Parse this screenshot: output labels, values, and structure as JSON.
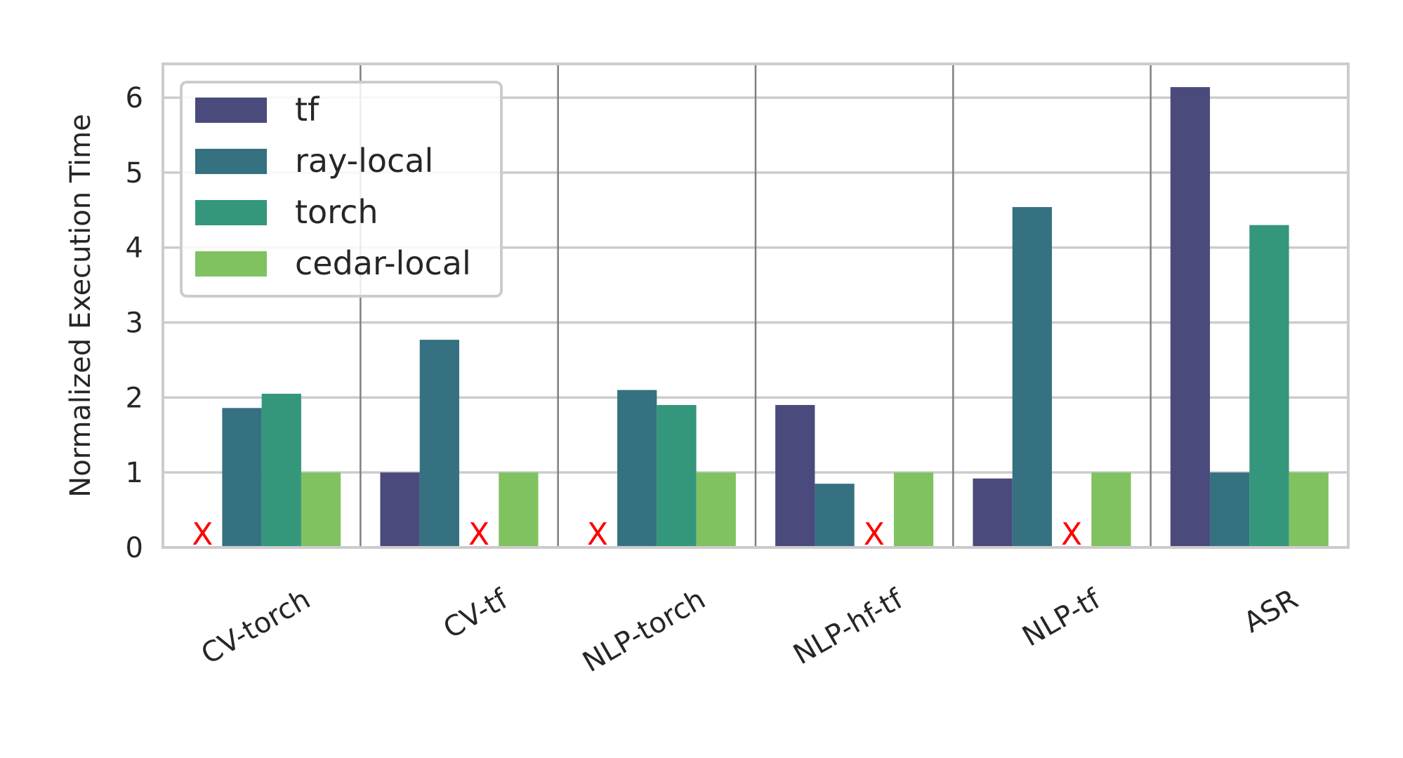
{
  "chart_data": {
    "type": "bar",
    "categories": [
      "CV-torch",
      "CV-tf",
      "NLP-torch",
      "NLP-hf-tf",
      "NLP-tf",
      "ASR"
    ],
    "series": [
      {
        "name": "tf",
        "color": "#4a4a7c",
        "values": [
          null,
          1.0,
          null,
          1.9,
          0.92,
          6.14
        ]
      },
      {
        "name": "ray-local",
        "color": "#357180",
        "values": [
          1.86,
          2.77,
          2.1,
          0.85,
          4.54,
          1.0
        ]
      },
      {
        "name": "torch",
        "color": "#34977b",
        "values": [
          2.05,
          null,
          1.9,
          null,
          null,
          4.3
        ]
      },
      {
        "name": "cedar-local",
        "color": "#80c25f",
        "values": [
          1.0,
          1.0,
          1.0,
          1.0,
          1.0,
          1.0
        ]
      }
    ],
    "missing_marker": "X",
    "ylabel": "Normalized Execution Time",
    "xlabel": "",
    "ylim": [
      0,
      6.45
    ],
    "yticks": [
      0,
      1,
      2,
      3,
      4,
      5,
      6
    ],
    "grid": true,
    "legend_position": "top-left"
  }
}
